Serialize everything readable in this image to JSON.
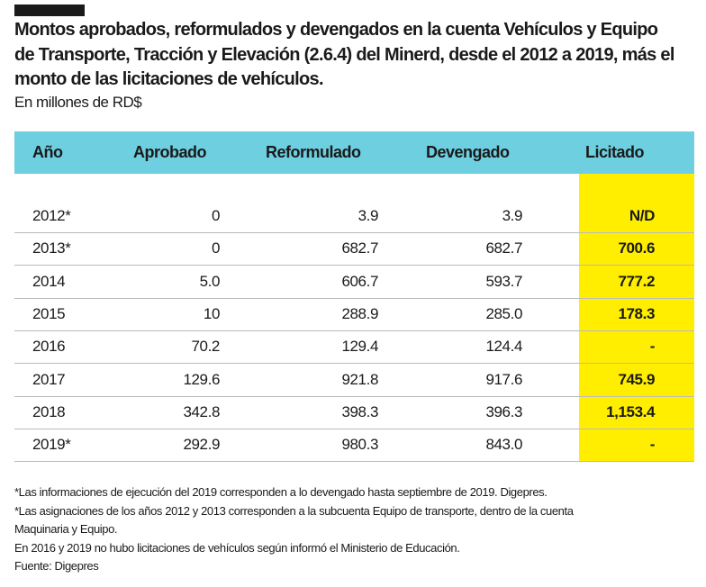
{
  "title": "Montos aprobados, reformulados y devengados en la cuenta Vehículos y Equipo de Transporte, Tracción y Elevación (2.6.4) del Minerd, desde el 2012 a  2019, más el monto de las licitaciones de vehículos.",
  "subtitle": "En millones de RD$",
  "colors": {
    "header": "#6dcfe0",
    "highlight": "#ffee00"
  },
  "chart_data": {
    "type": "table",
    "columns": [
      "Año",
      "Aprobado",
      "Reformulado",
      "Devengado",
      "Licitado"
    ],
    "rows": [
      [
        "2012*",
        "0",
        "3.9",
        "3.9",
        "N/D"
      ],
      [
        "2013*",
        "0",
        "682.7",
        "682.7",
        "700.6"
      ],
      [
        "2014",
        "5.0",
        "606.7",
        "593.7",
        "777.2"
      ],
      [
        "2015",
        "10",
        "288.9",
        "285.0",
        "178.3"
      ],
      [
        "2016",
        "70.2",
        "129.4",
        "124.4",
        "-"
      ],
      [
        "2017",
        "129.6",
        "921.8",
        "917.6",
        "745.9"
      ],
      [
        "2018",
        "342.8",
        "398.3",
        "396.3",
        "1,153.4"
      ],
      [
        "2019*",
        "292.9",
        "980.3",
        "843.0",
        "-"
      ]
    ]
  },
  "notes": [
    "*Las informaciones de ejecución del 2019 corresponden a lo devengado hasta septiembre de 2019. Digepres.",
    "*Las asignaciones de los años 2012 y 2013 corresponden a la subcuenta Equipo de transporte, dentro de la cuenta",
    "Maquinaria y Equipo.",
    "En 2016 y 2019 no hubo licitaciones de vehículos según informó el Ministerio de Educación.",
    "Fuente: Digepres"
  ]
}
